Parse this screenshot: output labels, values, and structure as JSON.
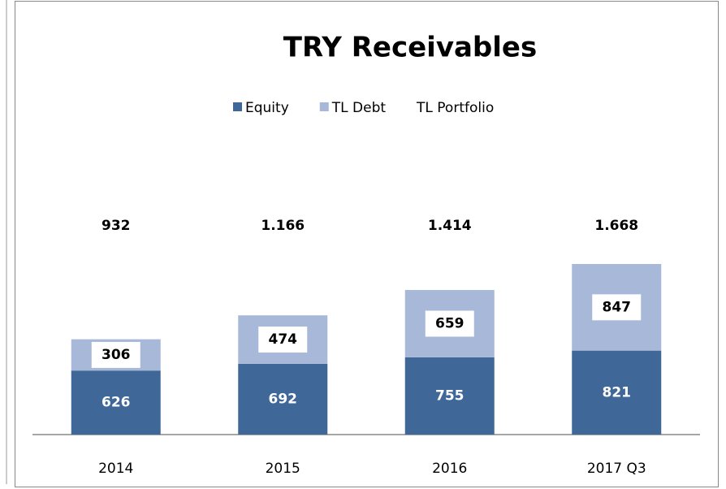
{
  "chart_data": {
    "type": "stacked_bar",
    "title": "TRY Receivables",
    "categories": [
      "2014",
      "2015",
      "2016",
      "2017 Q3"
    ],
    "series": [
      {
        "name": "Equity",
        "color": "#3f6899",
        "values": [
          626,
          692,
          755,
          821
        ]
      },
      {
        "name": "TL Debt",
        "color": "#a7b8d8",
        "values": [
          306,
          474,
          659,
          847
        ]
      },
      {
        "name": "TL Portfolio",
        "values": [
          932,
          1166,
          1414,
          1668
        ],
        "value_labels": [
          "932",
          "1.166",
          "1.414",
          "1.668"
        ]
      }
    ],
    "legend": "top"
  }
}
